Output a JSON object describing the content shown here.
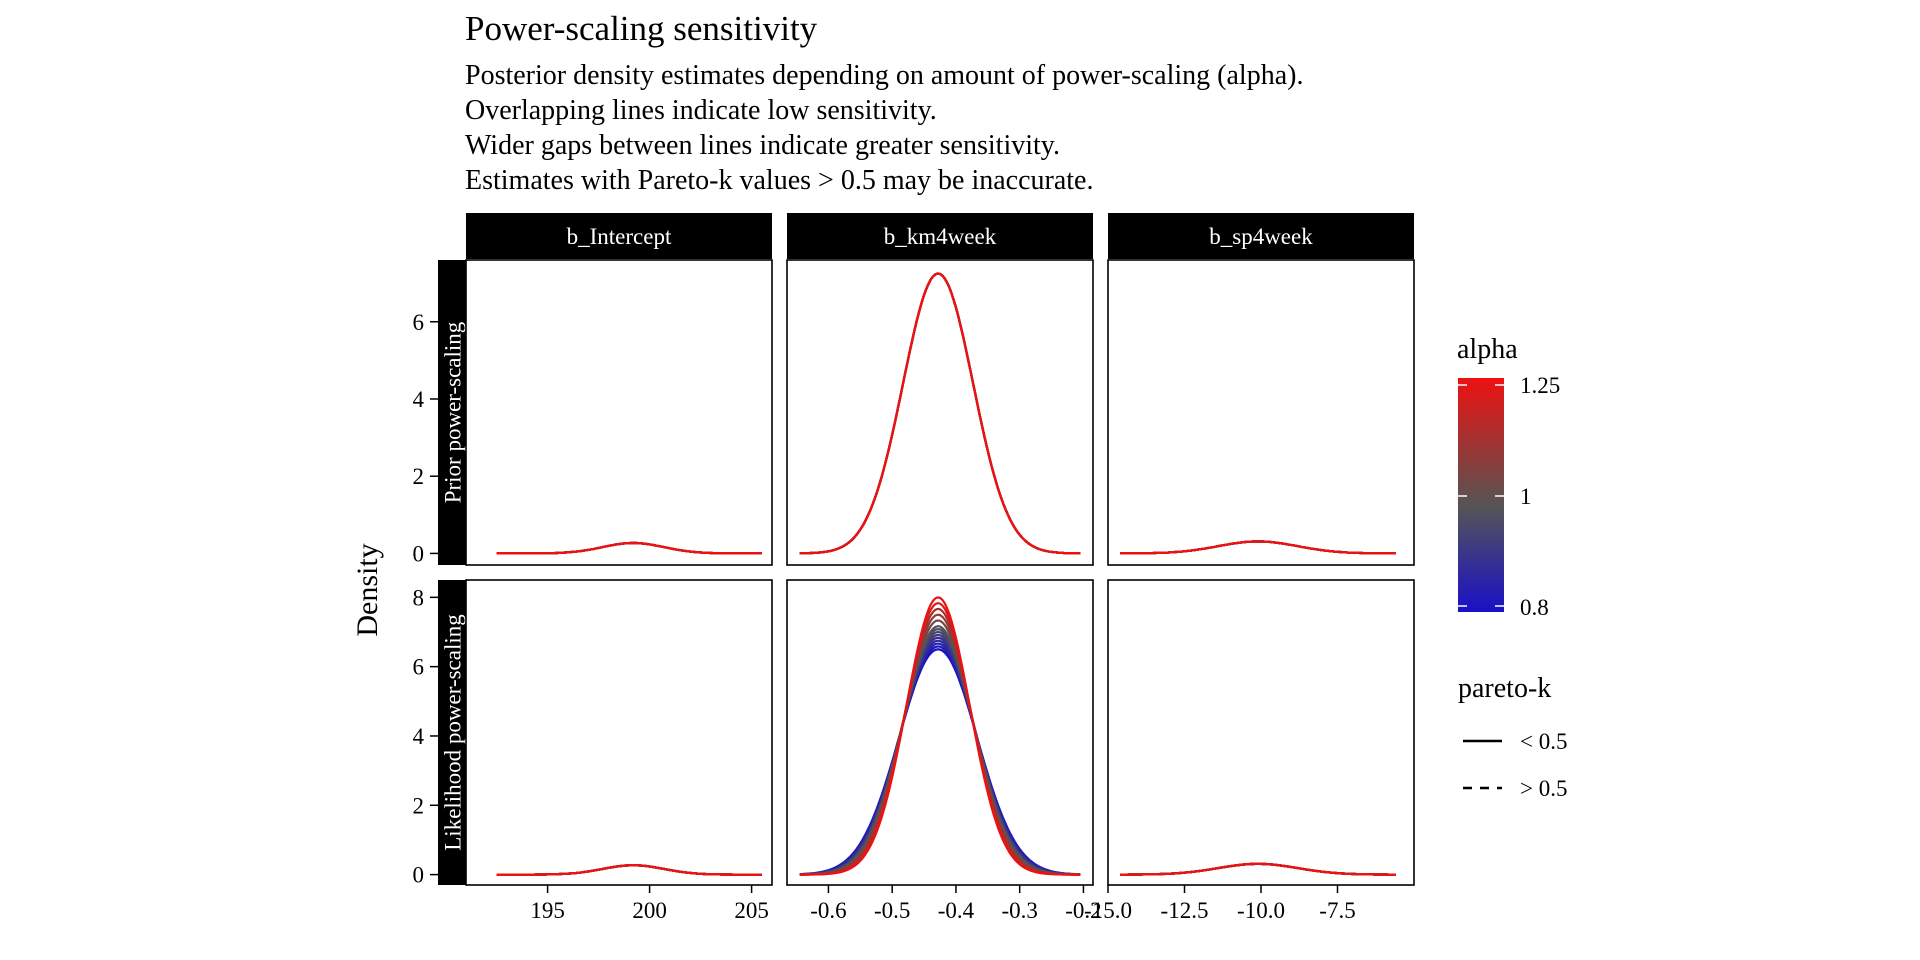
{
  "title": "Power-scaling sensitivity",
  "subtitle": [
    "Posterior density estimates depending on amount of power-scaling (alpha).",
    "Overlapping lines indicate low sensitivity.",
    "Wider gaps between lines indicate greater sensitivity.",
    "Estimates with Pareto-k values > 0.5 may be inaccurate."
  ],
  "ylabel": "Density",
  "colors": {
    "low": "#1a10c8",
    "mid": "#555555",
    "high": "#ee1111"
  },
  "legend": {
    "alpha_title": "alpha",
    "alpha_labels": [
      "1.25",
      "1",
      "0.8"
    ],
    "pareto_title": "pareto-k",
    "pareto_items": [
      {
        "label": "< 0.5",
        "style": "solid"
      },
      {
        "label": "> 0.5",
        "style": "dashed"
      }
    ]
  },
  "chart_data": {
    "type": "line",
    "grid": false,
    "legend_position": "right",
    "alpha_values": [
      0.8,
      0.825,
      0.85,
      0.875,
      0.9,
      0.925,
      0.95,
      0.975,
      1,
      1.05,
      1.1,
      1.15,
      1.2,
      1.25
    ],
    "facet_columns": [
      {
        "label": "b_Intercept",
        "xlim": [
          191,
          206
        ],
        "ticks": [
          195,
          200,
          205
        ],
        "tick_labels": [
          "195",
          "200",
          "205"
        ]
      },
      {
        "label": "b_km4week",
        "xlim": [
          -0.665,
          -0.185
        ],
        "ticks": [
          -0.6,
          -0.5,
          -0.4,
          -0.3,
          -0.2
        ],
        "tick_labels": [
          "-0.6",
          "-0.5",
          "-0.4",
          "-0.3",
          "-0.2"
        ]
      },
      {
        "label": "b_sp4week",
        "xlim": [
          -15,
          -5
        ],
        "ticks": [
          -15,
          -12.5,
          -10,
          -7.5
        ],
        "tick_labels": [
          "-15.0",
          "-12.5",
          "-10.0",
          "-7.5"
        ]
      }
    ],
    "facet_rows": [
      {
        "label": "Prior power-scaling",
        "ylim": [
          -0.3,
          7.6
        ],
        "ticks": [
          0,
          2,
          4,
          6
        ],
        "tick_labels": [
          "0",
          "2",
          "4",
          "6"
        ]
      },
      {
        "label": "Likelihood power-scaling",
        "ylim": [
          -0.3,
          8.5
        ],
        "ticks": [
          0,
          2,
          4,
          6,
          8
        ],
        "tick_labels": [
          "0",
          "2",
          "4",
          "6",
          "8"
        ]
      }
    ],
    "panels": [
      {
        "row": 0,
        "col": 0,
        "x_range": [
          192.5,
          205.5
        ],
        "curve": {
          "mu": 199.2,
          "sd": 1.5,
          "peak": 0.27
        },
        "spread": 0
      },
      {
        "row": 0,
        "col": 1,
        "x_range": [
          -0.645,
          -0.205
        ],
        "curve": {
          "mu": -0.428,
          "sd": 0.055,
          "peak": 7.25
        },
        "spread": 0
      },
      {
        "row": 0,
        "col": 2,
        "x_range": [
          -14.6,
          -5.6
        ],
        "curve": {
          "mu": -10.1,
          "sd": 1.3,
          "peak": 0.31
        },
        "spread": 0
      },
      {
        "row": 1,
        "col": 0,
        "x_range": [
          192.5,
          205.5
        ],
        "curve": {
          "mu": 199.2,
          "sd": 1.5,
          "peak": 0.27
        },
        "spread": 0.03
      },
      {
        "row": 1,
        "col": 1,
        "x_range": [
          -0.645,
          -0.205
        ],
        "curve": {
          "mu": -0.428,
          "sd": 0.055,
          "peak": 7.25
        },
        "spread": 1.5,
        "peak_alpha_low": 6.5,
        "peak_alpha_high": 8.0
      },
      {
        "row": 1,
        "col": 2,
        "x_range": [
          -14.6,
          -5.6
        ],
        "curve": {
          "mu": -10.1,
          "sd": 1.3,
          "peak": 0.31
        },
        "spread": 0.03
      }
    ]
  }
}
